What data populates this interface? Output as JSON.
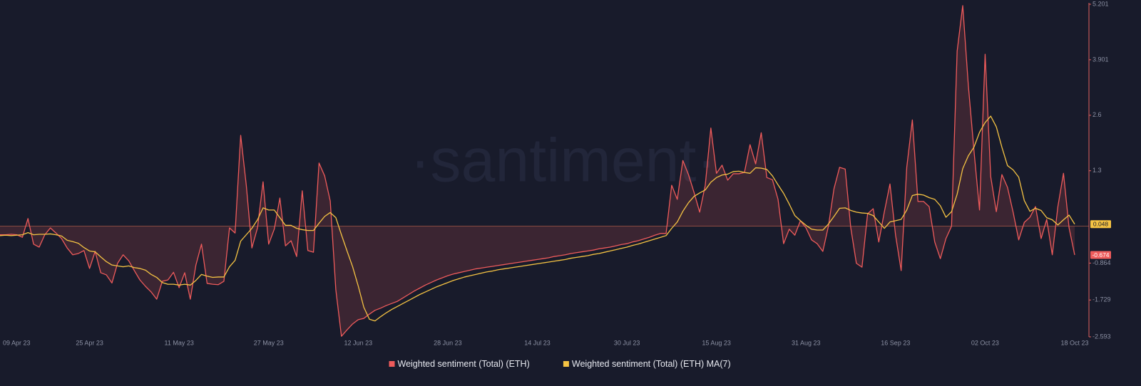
{
  "chart_data": {
    "type": "line",
    "watermark": "·santiment·",
    "categories": [
      "09 Apr 23",
      null,
      null,
      null,
      null,
      null,
      null,
      null,
      null,
      null,
      null,
      null,
      null,
      null,
      null,
      null,
      "25 Apr 23",
      null,
      null,
      null,
      null,
      null,
      null,
      null,
      null,
      null,
      null,
      null,
      null,
      null,
      null,
      null,
      "11 May 23",
      null,
      null,
      null,
      null,
      null,
      null,
      null,
      null,
      null,
      null,
      null,
      null,
      null,
      null,
      null,
      "27 May 23",
      null,
      null,
      null,
      null,
      null,
      null,
      null,
      null,
      null,
      null,
      null,
      null,
      null,
      null,
      null,
      "12 Jun 23",
      null,
      null,
      null,
      null,
      null,
      null,
      null,
      null,
      null,
      null,
      null,
      null,
      null,
      null,
      null,
      "28 Jun 23",
      null,
      null,
      null,
      null,
      null,
      null,
      null,
      null,
      null,
      null,
      null,
      null,
      null,
      null,
      null,
      "14 Jul 23",
      null,
      null,
      null,
      null,
      null,
      null,
      null,
      null,
      null,
      null,
      null,
      null,
      null,
      null,
      null,
      "30 Jul 23",
      null,
      null,
      null,
      null,
      null,
      null,
      null,
      null,
      null,
      null,
      null,
      null,
      null,
      null,
      null,
      "15 Aug 23",
      null,
      null,
      null,
      null,
      null,
      null,
      null,
      null,
      null,
      null,
      null,
      null,
      null,
      null,
      null,
      "31 Aug 23",
      null,
      null,
      null,
      null,
      null,
      null,
      null,
      null,
      null,
      null,
      null,
      null,
      null,
      null,
      null,
      "16 Sep 23",
      null,
      null,
      null,
      null,
      null,
      null,
      null,
      null,
      null,
      null,
      null,
      null,
      null,
      null,
      null,
      "02 Oct 23",
      null,
      null,
      null,
      null,
      null,
      null,
      null,
      null,
      null,
      null,
      null,
      null,
      null,
      null,
      null,
      "18 Oct 23"
    ],
    "series": [
      {
        "name": "Weighted sentiment (Total) (ETH)",
        "color": "#ef5b5b",
        "area": true,
        "values": [
          -0.2,
          -0.2,
          -0.19,
          -0.2,
          -0.26,
          0.18,
          -0.42,
          -0.49,
          -0.2,
          -0.04,
          -0.16,
          -0.29,
          -0.51,
          -0.67,
          -0.64,
          -0.57,
          -0.99,
          -0.59,
          -1.09,
          -1.14,
          -1.33,
          -0.87,
          -0.67,
          -0.81,
          -1.04,
          -1.26,
          -1.41,
          -1.54,
          -1.71,
          -1.29,
          -1.26,
          -1.08,
          -1.44,
          -1.09,
          -1.71,
          -0.91,
          -0.42,
          -1.34,
          -1.36,
          -1.37,
          -1.29,
          -0.04,
          -0.16,
          2.13,
          0.96,
          -0.51,
          -0.04,
          1.04,
          -0.42,
          -0.07,
          0.66,
          -0.46,
          -0.34,
          -0.71,
          0.83,
          -0.57,
          -0.61,
          1.48,
          1.18,
          0.59,
          -1.49,
          -2.58,
          -2.43,
          -2.29,
          -2.19,
          -2.16,
          -2.06,
          -1.97,
          -1.92,
          -1.86,
          -1.81,
          -1.76,
          -1.68,
          -1.6,
          -1.52,
          -1.45,
          -1.38,
          -1.32,
          -1.26,
          -1.21,
          -1.16,
          -1.12,
          -1.09,
          -1.06,
          -1.03,
          -1.0,
          -0.98,
          -0.96,
          -0.94,
          -0.92,
          -0.9,
          -0.88,
          -0.86,
          -0.84,
          -0.82,
          -0.8,
          -0.78,
          -0.76,
          -0.74,
          -0.71,
          -0.69,
          -0.67,
          -0.64,
          -0.62,
          -0.6,
          -0.58,
          -0.56,
          -0.53,
          -0.51,
          -0.49,
          -0.46,
          -0.43,
          -0.41,
          -0.37,
          -0.34,
          -0.3,
          -0.26,
          -0.21,
          -0.17,
          -0.17,
          0.96,
          0.63,
          1.54,
          1.21,
          0.79,
          0.33,
          0.96,
          2.3,
          1.24,
          1.43,
          1.08,
          1.23,
          1.23,
          1.26,
          1.91,
          1.46,
          2.19,
          1.14,
          1.09,
          0.63,
          -0.41,
          -0.07,
          -0.21,
          0.13,
          -0.04,
          -0.32,
          -0.41,
          -0.59,
          0.0,
          0.88,
          1.38,
          1.34,
          -0.04,
          -0.87,
          -0.96,
          0.29,
          0.41,
          -0.37,
          0.34,
          0.99,
          -0.21,
          -1.04,
          1.38,
          2.49,
          0.58,
          0.58,
          0.46,
          -0.37,
          -0.76,
          -0.29,
          0.0,
          4.1,
          5.17,
          3.3,
          1.78,
          0.38,
          4.03,
          1.16,
          0.34,
          1.21,
          0.91,
          0.33,
          -0.32,
          0.09,
          0.21,
          0.46,
          -0.29,
          0.16,
          -0.67,
          0.46,
          1.24,
          -0.04,
          -0.674
        ]
      },
      {
        "name": "Weighted sentiment (Total) (ETH) MA(7)",
        "color": "#f5c343",
        "area": false,
        "values": [
          -0.22,
          -0.21,
          -0.22,
          -0.21,
          -0.2,
          -0.15,
          -0.2,
          -0.19,
          -0.19,
          -0.18,
          -0.2,
          -0.23,
          -0.33,
          -0.36,
          -0.4,
          -0.5,
          -0.58,
          -0.6,
          -0.72,
          -0.83,
          -0.91,
          -0.93,
          -0.95,
          -0.93,
          -0.97,
          -0.99,
          -1.03,
          -1.13,
          -1.2,
          -1.32,
          -1.36,
          -1.36,
          -1.38,
          -1.36,
          -1.38,
          -1.27,
          -1.13,
          -1.17,
          -1.2,
          -1.19,
          -1.19,
          -0.95,
          -0.8,
          -0.35,
          -0.2,
          -0.05,
          0.15,
          0.43,
          0.38,
          0.38,
          0.2,
          0.02,
          0.02,
          -0.05,
          -0.08,
          -0.1,
          -0.1,
          0.07,
          0.23,
          0.32,
          0.2,
          -0.2,
          -0.58,
          -0.95,
          -1.4,
          -1.9,
          -2.18,
          -2.22,
          -2.12,
          -2.03,
          -1.95,
          -1.88,
          -1.81,
          -1.74,
          -1.67,
          -1.6,
          -1.54,
          -1.48,
          -1.42,
          -1.37,
          -1.32,
          -1.27,
          -1.23,
          -1.19,
          -1.16,
          -1.13,
          -1.1,
          -1.07,
          -1.05,
          -1.02,
          -1.0,
          -0.98,
          -0.96,
          -0.94,
          -0.92,
          -0.9,
          -0.88,
          -0.86,
          -0.84,
          -0.82,
          -0.8,
          -0.78,
          -0.75,
          -0.73,
          -0.71,
          -0.69,
          -0.66,
          -0.64,
          -0.61,
          -0.58,
          -0.55,
          -0.52,
          -0.49,
          -0.45,
          -0.42,
          -0.38,
          -0.34,
          -0.3,
          -0.26,
          -0.22,
          -0.05,
          0.1,
          0.35,
          0.55,
          0.7,
          0.78,
          0.85,
          1.03,
          1.14,
          1.2,
          1.22,
          1.28,
          1.29,
          1.26,
          1.24,
          1.37,
          1.36,
          1.33,
          1.18,
          0.97,
          0.77,
          0.52,
          0.25,
          0.13,
          0.02,
          -0.07,
          -0.09,
          -0.09,
          0.05,
          0.23,
          0.42,
          0.43,
          0.37,
          0.33,
          0.31,
          0.3,
          0.25,
          0.1,
          -0.05,
          0.1,
          0.13,
          0.16,
          0.38,
          0.72,
          0.75,
          0.73,
          0.67,
          0.63,
          0.48,
          0.21,
          0.34,
          0.75,
          1.35,
          1.65,
          1.85,
          2.2,
          2.43,
          2.58,
          2.33,
          1.85,
          1.42,
          1.32,
          1.15,
          0.6,
          0.35,
          0.42,
          0.37,
          0.2,
          0.15,
          0.03,
          0.15,
          0.26,
          0.048
        ]
      }
    ],
    "ylim": [
      -2.593,
      5.201
    ],
    "yticks": [
      -2.593,
      -1.729,
      -0.864,
      1.3,
      2.6,
      3.901,
      5.201
    ],
    "grid": false,
    "legend": "bottom"
  }
}
